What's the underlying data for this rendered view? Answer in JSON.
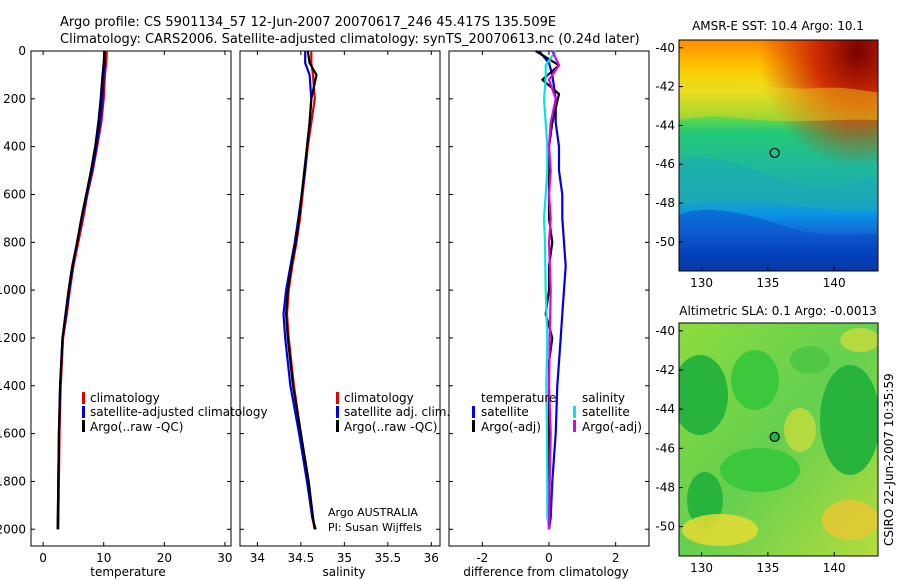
{
  "header": {
    "title_line1": "Argo profile: CS 5901134_57 12-Jun-2007 20070617_246 45.417S 135.509E",
    "title_line2": "Climatology: CARS2006. Satellite-adjusted climatology: synTS_20070613.nc (0.24d later)"
  },
  "side_label": "CSIRO 22-Jun-2007 10:35:59",
  "colors": {
    "climatology": "#e00000",
    "satellite": "#0000e0",
    "argo": "#000000",
    "cyan": "#00e5e5",
    "magenta": "#e000e0"
  },
  "depth_axis": {
    "ticks": [
      0,
      200,
      400,
      600,
      800,
      1000,
      1200,
      1400,
      1600,
      1800,
      2000
    ],
    "range": [
      2070,
      0
    ]
  },
  "chart_data": [
    {
      "type": "line",
      "name": "temperature",
      "xlabel": "temperature",
      "ylabel": "",
      "xlim": [
        -2,
        31
      ],
      "ylim": [
        2070,
        0
      ],
      "xticks": [
        0,
        10,
        20,
        30
      ],
      "legend": [
        "climatology",
        "satellite-adjusted climatology",
        "Argo(..raw -QC)"
      ],
      "series": [
        {
          "name": "climatology",
          "color": "#e00000",
          "x": [
            10.5,
            10.4,
            10.2,
            10.0,
            9.6,
            8.9,
            8.2,
            7.3,
            6.6,
            5.8,
            5.0,
            4.4,
            3.9,
            3.3,
            2.9,
            2.7,
            2.6,
            2.5
          ],
          "y": [
            0,
            50,
            100,
            200,
            300,
            400,
            500,
            600,
            700,
            800,
            900,
            1000,
            1100,
            1200,
            1400,
            1600,
            1800,
            2000
          ]
        },
        {
          "name": "satellite",
          "color": "#0000e0",
          "x": [
            10.2,
            10.2,
            10.0,
            9.8,
            9.4,
            8.8,
            8.1,
            7.2,
            6.4,
            5.6,
            4.9,
            4.3,
            3.8,
            3.2,
            2.8,
            2.6,
            2.5,
            2.4
          ],
          "y": [
            0,
            50,
            100,
            200,
            300,
            400,
            500,
            600,
            700,
            800,
            900,
            1000,
            1100,
            1200,
            1400,
            1600,
            1800,
            2000
          ]
        },
        {
          "name": "argo",
          "color": "#000000",
          "x": [
            10.1,
            10.0,
            9.8,
            9.5,
            9.1,
            8.6,
            7.9,
            7.1,
            6.3,
            5.6,
            4.8,
            4.2,
            3.7,
            3.2,
            2.8,
            2.6,
            2.5,
            2.4
          ],
          "y": [
            0,
            50,
            100,
            200,
            300,
            400,
            500,
            600,
            700,
            800,
            900,
            1000,
            1100,
            1200,
            1400,
            1600,
            1800,
            2000
          ]
        }
      ]
    },
    {
      "type": "line",
      "name": "salinity",
      "xlabel": "salinity",
      "ylabel": "",
      "xlim": [
        33.8,
        36.1
      ],
      "ylim": [
        2070,
        0
      ],
      "xticks": [
        34,
        34.5,
        35,
        35.5,
        36
      ],
      "legend": [
        "climatology",
        "satellite adj. clim.",
        "Argo(..raw -QC)"
      ],
      "annotation": [
        "Argo AUSTRALIA",
        "PI: Susan Wijffels"
      ],
      "series": [
        {
          "name": "climatology",
          "color": "#e00000",
          "x": [
            34.62,
            34.62,
            34.64,
            34.66,
            34.62,
            34.58,
            34.55,
            34.52,
            34.49,
            34.45,
            34.4,
            34.36,
            34.34,
            34.36,
            34.42,
            34.5,
            34.58,
            34.63,
            34.66
          ],
          "y": [
            0,
            50,
            100,
            200,
            300,
            400,
            500,
            600,
            700,
            800,
            900,
            1000,
            1100,
            1200,
            1400,
            1600,
            1800,
            1950,
            2000
          ]
        },
        {
          "name": "satellite",
          "color": "#0000e0",
          "x": [
            34.55,
            34.55,
            34.6,
            34.62,
            34.6,
            34.57,
            34.55,
            34.51,
            34.47,
            34.43,
            34.38,
            34.33,
            34.3,
            34.32,
            34.38,
            34.48,
            34.57,
            34.63,
            34.67
          ],
          "y": [
            0,
            50,
            100,
            200,
            300,
            400,
            500,
            600,
            700,
            800,
            900,
            1000,
            1100,
            1200,
            1400,
            1600,
            1800,
            1950,
            2000
          ]
        },
        {
          "name": "argo",
          "color": "#000000",
          "x": [
            34.58,
            34.6,
            34.68,
            34.62,
            34.6,
            34.57,
            34.54,
            34.51,
            34.48,
            34.44,
            34.39,
            34.35,
            34.33,
            34.35,
            34.41,
            34.5,
            34.59,
            34.64,
            34.66
          ],
          "y": [
            0,
            50,
            100,
            200,
            300,
            400,
            500,
            600,
            700,
            800,
            900,
            1000,
            1100,
            1200,
            1400,
            1600,
            1800,
            1950,
            2000
          ]
        }
      ]
    },
    {
      "type": "line",
      "name": "difference",
      "xlabel": "difference from climatology",
      "ylabel": "",
      "xlim": [
        -3,
        3
      ],
      "ylim": [
        2070,
        0
      ],
      "xticks": [
        -2,
        0,
        2
      ],
      "legend_temperature": [
        "temperature",
        "satellite",
        "Argo(-adj)"
      ],
      "legend_salinity": [
        "salinity",
        "satellite",
        "Argo(-adj)"
      ],
      "series": [
        {
          "name": "temperature satellite",
          "color": "#0000e0",
          "x": [
            -0.3,
            0.0,
            0.1,
            0.2,
            0.2,
            0.3,
            0.3,
            0.4,
            0.4,
            0.45,
            0.5,
            0.45,
            0.4,
            0.35,
            0.3,
            0.25,
            0.2,
            0.1,
            0.05,
            0.0
          ],
          "y": [
            0,
            50,
            100,
            200,
            300,
            400,
            500,
            600,
            700,
            800,
            900,
            1000,
            1100,
            1200,
            1300,
            1400,
            1600,
            1800,
            1950,
            2000
          ]
        },
        {
          "name": "temperature argo",
          "color": "#000000",
          "x": [
            -0.4,
            0.3,
            -0.2,
            0.3,
            0.1,
            0.0,
            0.0,
            0.0,
            0.0,
            0.1,
            0.0,
            0.0,
            -0.1,
            0.1,
            0.0,
            0.0,
            0.0,
            0.0,
            0.0
          ],
          "y": [
            0,
            60,
            120,
            180,
            300,
            400,
            500,
            600,
            700,
            800,
            900,
            1000,
            1100,
            1200,
            1300,
            1500,
            1700,
            1900,
            2000
          ]
        },
        {
          "name": "salinity satellite",
          "color": "#00e5e5",
          "x": [
            0.2,
            -0.1,
            -0.1,
            -0.15,
            -0.1,
            -0.05,
            -0.05,
            -0.1,
            -0.15,
            -0.12,
            -0.1,
            -0.05,
            -0.08,
            -0.06,
            -0.05,
            -0.05,
            0.0
          ],
          "y": [
            0,
            60,
            120,
            200,
            300,
            400,
            500,
            600,
            700,
            800,
            1000,
            1200,
            1400,
            1600,
            1800,
            1950,
            2000
          ]
        },
        {
          "name": "salinity argo",
          "color": "#e000e0",
          "x": [
            0.1,
            0.3,
            0.0,
            0.2,
            0.05,
            0.0,
            0.05,
            0.0,
            0.05,
            0.0,
            0.05,
            0.02,
            0.0,
            0.05,
            0.02,
            0.0
          ],
          "y": [
            0,
            60,
            120,
            200,
            300,
            400,
            500,
            600,
            700,
            800,
            1000,
            1200,
            1400,
            1600,
            1800,
            2000
          ]
        }
      ]
    },
    {
      "type": "heatmap",
      "name": "amsr-sst-map",
      "title": "AMSR-E SST: 10.4  Argo: 10.1",
      "xlim": [
        128.3,
        143.3
      ],
      "ylim": [
        -51.5,
        -39.6
      ],
      "xticks": [
        130,
        135,
        140
      ],
      "yticks": [
        -40,
        -42,
        -44,
        -46,
        -48,
        -50
      ],
      "marker": {
        "lon": 135.509,
        "lat": -45.417
      }
    },
    {
      "type": "heatmap",
      "name": "altimetric-sla-map",
      "title": "Altimetric SLA: 0.1  Argo: -0.0013",
      "xlim": [
        128.3,
        143.3
      ],
      "ylim": [
        -51.5,
        -39.6
      ],
      "xticks": [
        130,
        135,
        140
      ],
      "yticks": [
        -40,
        -42,
        -44,
        -46,
        -48,
        -50
      ],
      "marker": {
        "lon": 135.509,
        "lat": -45.417
      }
    }
  ]
}
